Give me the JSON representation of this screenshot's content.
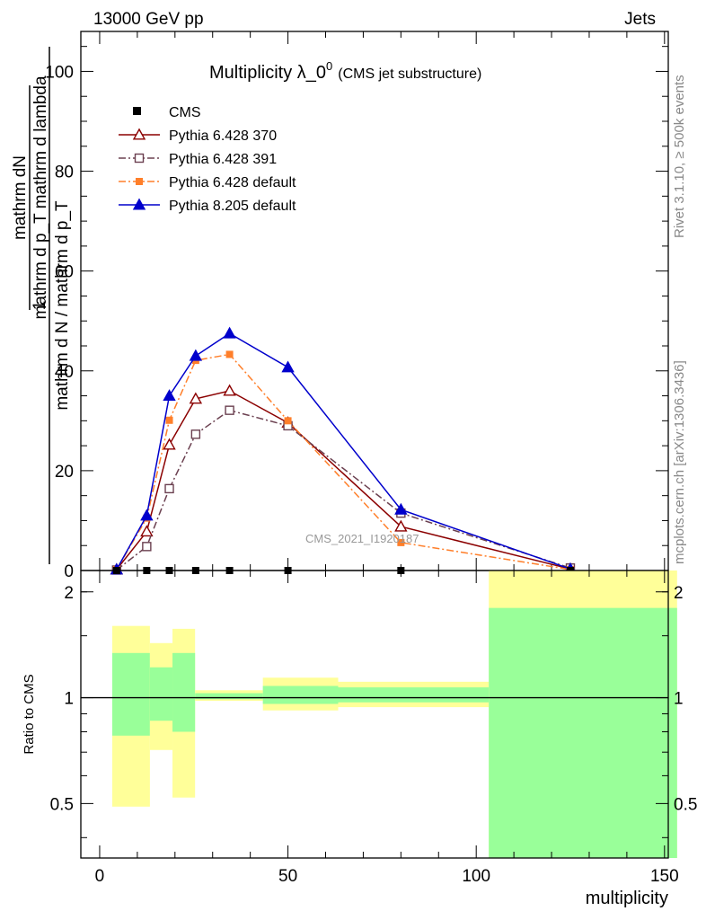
{
  "header": {
    "left_label": "13000 GeV pp",
    "right_label": "Jets"
  },
  "side_text": {
    "top": "Rivet 3.1.10, ≥ 500k events",
    "bottom": "mcplots.cern.ch [arXiv:1306.3436]"
  },
  "watermark": "CMS_2021_I1920187",
  "chart_data": [
    {
      "type": "line",
      "title_main": "Multiplicity λ_0",
      "title_sup": "0",
      "title_sub": "(CMS jet substructure)",
      "ylabel_num": "mathrm dN",
      "ylabel_den": "mathrm d p_T mathrm d lambda",
      "ylabel_frac_num": "1",
      "ylabel_frac_den": "mathrm d N / mathrm d p_T",
      "xlim": [
        -5,
        151
      ],
      "ylim": [
        0,
        108
      ],
      "yticks": [
        0,
        20,
        40,
        60,
        80,
        100
      ],
      "legend_position": "top-left",
      "cms_points": {
        "name": "CMS",
        "color": "#000000",
        "x": [
          4.5,
          12.5,
          18.5,
          25.5,
          34.5,
          50,
          80,
          125
        ],
        "y": [
          0.0,
          0.0,
          0.0,
          0.0,
          0.0,
          0.0,
          0.0,
          0.0
        ]
      },
      "series": [
        {
          "name": "Pythia 6.428 370",
          "color": "#8b0000",
          "marker": "triangle-open",
          "dash": "solid",
          "x": [
            4.5,
            12.5,
            18.5,
            25.5,
            34.5,
            50,
            80,
            125
          ],
          "y": [
            0.2,
            7.8,
            25.2,
            34.4,
            36.0,
            29.6,
            8.8,
            0.3
          ]
        },
        {
          "name": "Pythia 6.428 391",
          "color": "#6b4050",
          "marker": "square-open",
          "dash": "dashdot",
          "x": [
            4.5,
            12.5,
            18.5,
            25.5,
            34.5,
            50,
            80,
            125
          ],
          "y": [
            0.1,
            4.8,
            16.4,
            27.3,
            32.1,
            29.0,
            11.5,
            0.5
          ]
        },
        {
          "name": "Pythia 6.428 default",
          "color": "#ff7f2a",
          "marker": "square-filled",
          "dash": "dashdot",
          "x": [
            4.5,
            12.5,
            18.5,
            25.5,
            34.5,
            50,
            80,
            125
          ],
          "y": [
            0.2,
            10.5,
            30.1,
            42.1,
            43.3,
            30.0,
            5.6,
            0.2
          ]
        },
        {
          "name": "Pythia 8.205 default",
          "color": "#0000cc",
          "marker": "triangle-filled",
          "dash": "solid",
          "x": [
            4.5,
            12.5,
            18.5,
            25.5,
            34.5,
            50,
            80,
            125
          ],
          "y": [
            0.2,
            11.0,
            35.0,
            43.0,
            47.5,
            40.7,
            12.2,
            0.3
          ]
        }
      ]
    },
    {
      "type": "area",
      "ylabel": "Ratio to CMS",
      "xlabel": "multiplicity",
      "xlim": [
        -5,
        151
      ],
      "ylim": [
        0.35,
        2.3
      ],
      "xticks": [
        0,
        50,
        100,
        150
      ],
      "yticks": [
        "0.5",
        "1",
        "2"
      ],
      "reference": 1,
      "bands": [
        {
          "x0": 0,
          "x1": 10,
          "green": [
            0.78,
            1.34
          ],
          "yellow": [
            0.49,
            1.6
          ]
        },
        {
          "x0": 10,
          "x1": 16,
          "green": [
            0.86,
            1.22
          ],
          "yellow": [
            0.71,
            1.43
          ]
        },
        {
          "x0": 16,
          "x1": 22,
          "green": [
            0.8,
            1.34
          ],
          "yellow": [
            0.52,
            1.57
          ]
        },
        {
          "x0": 22,
          "x1": 40,
          "green": [
            0.99,
            1.03
          ],
          "yellow": [
            0.98,
            1.05
          ]
        },
        {
          "x0": 40,
          "x1": 60,
          "green": [
            0.96,
            1.08
          ],
          "yellow": [
            0.92,
            1.14
          ]
        },
        {
          "x0": 60,
          "x1": 100,
          "green": [
            0.97,
            1.07
          ],
          "yellow": [
            0.94,
            1.11
          ]
        },
        {
          "x0": 100,
          "x1": 150,
          "green": [
            0.35,
            1.8
          ],
          "yellow": [
            0.35,
            2.3
          ]
        }
      ],
      "colors": {
        "green": "#99ff99",
        "yellow": "#ffff99"
      }
    }
  ]
}
